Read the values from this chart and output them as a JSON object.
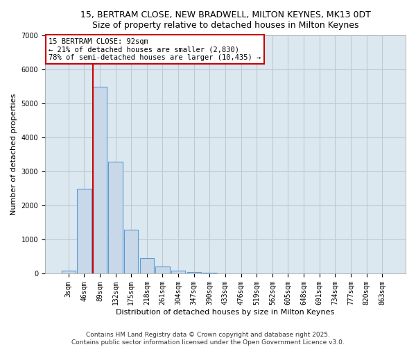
{
  "title_line1": "15, BERTRAM CLOSE, NEW BRADWELL, MILTON KEYNES, MK13 0DT",
  "title_line2": "Size of property relative to detached houses in Milton Keynes",
  "xlabel": "Distribution of detached houses by size in Milton Keynes",
  "ylabel": "Number of detached properties",
  "categories": [
    "3sqm",
    "46sqm",
    "89sqm",
    "132sqm",
    "175sqm",
    "218sqm",
    "261sqm",
    "304sqm",
    "347sqm",
    "390sqm",
    "433sqm",
    "476sqm",
    "519sqm",
    "562sqm",
    "605sqm",
    "648sqm",
    "691sqm",
    "734sqm",
    "777sqm",
    "820sqm",
    "863sqm"
  ],
  "values": [
    90,
    2500,
    5500,
    3300,
    1300,
    450,
    220,
    100,
    50,
    20,
    0,
    0,
    0,
    0,
    0,
    0,
    0,
    0,
    0,
    0,
    0
  ],
  "bar_color": "#c8d8e8",
  "bar_edge_color": "#5b9bd5",
  "vline_color": "#cc0000",
  "annotation_title": "15 BERTRAM CLOSE: 92sqm",
  "annotation_line1": "← 21% of detached houses are smaller (2,830)",
  "annotation_line2": "78% of semi-detached houses are larger (10,435) →",
  "annotation_box_color": "#cc0000",
  "ylim": [
    0,
    7000
  ],
  "yticks": [
    0,
    1000,
    2000,
    3000,
    4000,
    5000,
    6000,
    7000
  ],
  "grid_color": "#c0c8d0",
  "background_color": "#dce8f0",
  "footer_line1": "Contains HM Land Registry data © Crown copyright and database right 2025.",
  "footer_line2": "Contains public sector information licensed under the Open Government Licence v3.0.",
  "title_fontsize": 9,
  "axis_label_fontsize": 8,
  "tick_fontsize": 7,
  "footer_fontsize": 6.5
}
